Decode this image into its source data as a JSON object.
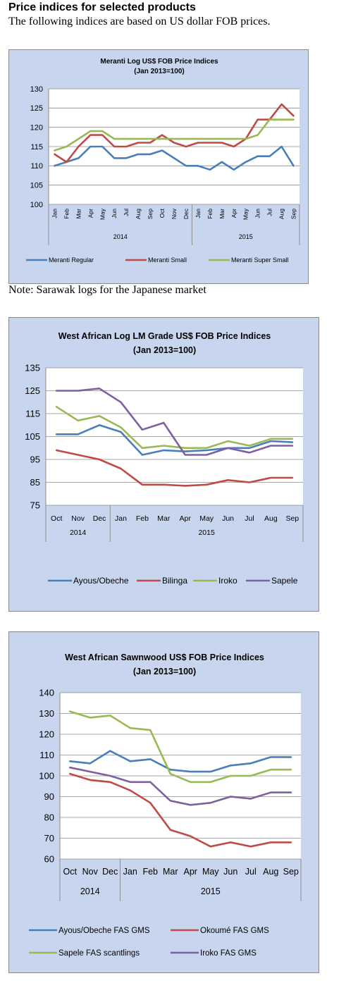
{
  "page": {
    "heading": "Price indices for selected products",
    "subheading": "The following indices are based on US dollar FOB prices.",
    "note": "Note: Sarawak logs for the Japanese market"
  },
  "chart_data": [
    {
      "type": "line",
      "title": "Meranti Log US$ FOB Price Indices",
      "subtitle": "(Jan 2013=100)",
      "categories": [
        "Jan",
        "Feb",
        "Mar",
        "Apr",
        "May",
        "Jun",
        "Jul",
        "Aug",
        "Sep",
        "Oct",
        "Nov",
        "Dec",
        "Jan",
        "Feb",
        "Mar",
        "Apr",
        "May",
        "Jun",
        "Jul",
        "Aug",
        "Sep"
      ],
      "year_groups": [
        {
          "label": "2014",
          "count": 12
        },
        {
          "label": "2015",
          "count": 9
        }
      ],
      "ylim": [
        100,
        130
      ],
      "yticks": [
        100,
        105,
        110,
        115,
        120,
        125,
        130
      ],
      "grid": true,
      "legend": "bottom",
      "series": [
        {
          "name": "Meranti Regular",
          "color": "#4a7ebb",
          "values": [
            110,
            111,
            112,
            115,
            115,
            112,
            112,
            113,
            113,
            114,
            112,
            110,
            110,
            109,
            111,
            109,
            111,
            112.5,
            112.5,
            115,
            110
          ]
        },
        {
          "name": "Meranti Small",
          "color": "#be4b48",
          "values": [
            113,
            111,
            115,
            118,
            118,
            115,
            115,
            116,
            116,
            118,
            116,
            115,
            116,
            116,
            116,
            115,
            117,
            122,
            122,
            126,
            123
          ]
        },
        {
          "name": "Meranti Super Small",
          "color": "#98b954",
          "values": [
            114,
            115,
            117,
            119,
            119,
            117,
            117,
            117,
            117,
            117,
            117,
            117,
            117,
            117,
            117,
            117,
            117,
            118,
            122,
            122,
            122
          ]
        }
      ]
    },
    {
      "type": "line",
      "title": "West African Log LM Grade US$ FOB Price Indices",
      "subtitle": "(Jan 2013=100)",
      "categories": [
        "Oct",
        "Nov",
        "Dec",
        "Jan",
        "Feb",
        "Mar",
        "Apr",
        "May",
        "Jun",
        "Jul",
        "Aug",
        "Sep"
      ],
      "year_groups": [
        {
          "label": "2014",
          "count": 3
        },
        {
          "label": "2015",
          "count": 9
        }
      ],
      "ylim": [
        75,
        135
      ],
      "yticks": [
        75,
        85,
        95,
        105,
        115,
        125,
        135
      ],
      "grid": true,
      "legend": "bottom",
      "series": [
        {
          "name": "Ayous/Obeche",
          "color": "#4a7ebb",
          "values": [
            106,
            106,
            110,
            107,
            97,
            99,
            98.5,
            99,
            100,
            100,
            103,
            102.5
          ]
        },
        {
          "name": "Bilinga",
          "color": "#be4b48",
          "values": [
            99,
            97,
            95,
            91,
            84,
            84,
            83.5,
            84,
            86,
            85,
            87,
            87
          ]
        },
        {
          "name": "Iroko",
          "color": "#98b954",
          "values": [
            118,
            112,
            114,
            109,
            100,
            101,
            100,
            100,
            103,
            101,
            104,
            104
          ]
        },
        {
          "name": "Sapele",
          "color": "#7d60a0",
          "values": [
            125,
            125,
            126,
            120,
            108,
            111,
            97,
            97,
            100,
            98,
            101,
            101
          ]
        }
      ]
    },
    {
      "type": "line",
      "title": "West African Sawnwood US$ FOB Price Indices",
      "subtitle": "(Jan 2013=100)",
      "categories": [
        "Oct",
        "Nov",
        "Dec",
        "Jan",
        "Feb",
        "Mar",
        "Apr",
        "May",
        "Jun",
        "Jul",
        "Aug",
        "Sep"
      ],
      "year_groups": [
        {
          "label": "2014",
          "count": 3
        },
        {
          "label": "2015",
          "count": 9
        }
      ],
      "ylim": [
        60,
        140
      ],
      "yticks": [
        60,
        70,
        80,
        90,
        100,
        110,
        120,
        130,
        140
      ],
      "grid": true,
      "legend": "bottom",
      "series": [
        {
          "name": "Ayous/Obeche FAS GMS",
          "color": "#4a7ebb",
          "values": [
            107,
            106,
            112,
            107,
            108,
            103,
            102,
            102,
            105,
            106,
            109,
            109
          ]
        },
        {
          "name": "Okoumé  FAS GMS",
          "color": "#be4b48",
          "values": [
            101,
            98,
            97,
            93,
            87,
            74,
            71,
            66,
            68,
            66,
            68,
            68
          ]
        },
        {
          "name": "Sapele FAS scantlings",
          "color": "#98b954",
          "values": [
            131,
            128,
            129,
            123,
            122,
            101,
            97,
            97,
            100,
            100,
            103,
            103
          ]
        },
        {
          "name": "Iroko FAS GMS",
          "color": "#7d60a0",
          "values": [
            104,
            102,
            100,
            97,
            97,
            88,
            86,
            87,
            90,
            89,
            92,
            92
          ]
        }
      ]
    }
  ]
}
